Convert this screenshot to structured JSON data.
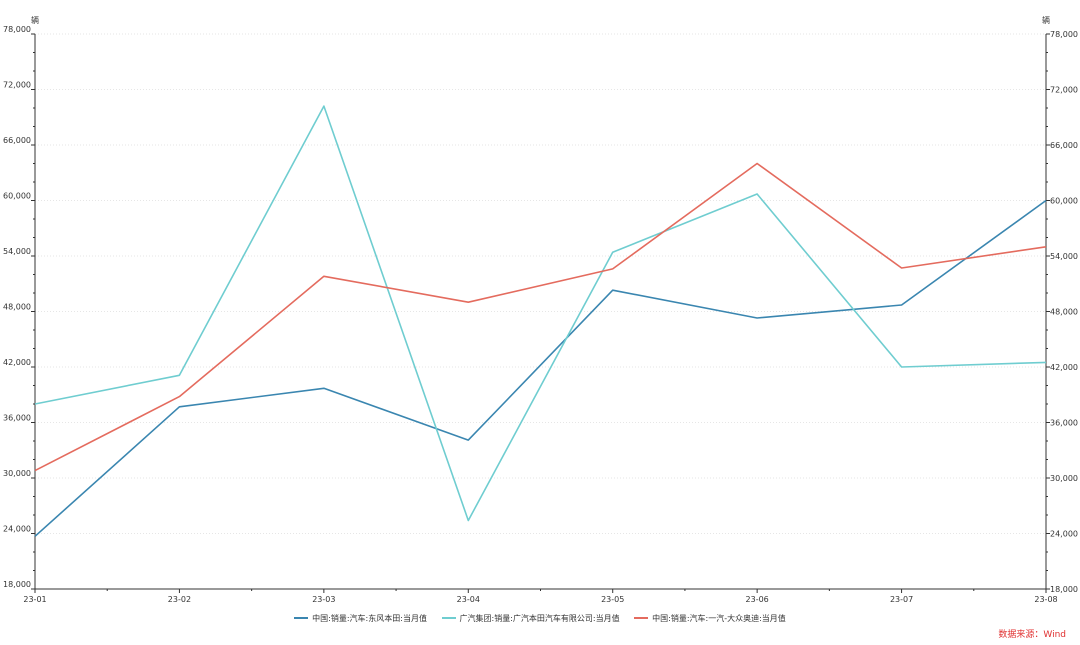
{
  "chart_data": {
    "type": "line",
    "x": [
      "23-01",
      "23-02",
      "23-03",
      "23-04",
      "23-05",
      "23-06",
      "23-07",
      "23-08"
    ],
    "y_unit_left": "辆",
    "y_unit_right": "辆",
    "ylim": [
      18000,
      78000
    ],
    "yticks": [
      18000,
      24000,
      30000,
      36000,
      42000,
      48000,
      54000,
      60000,
      66000,
      72000,
      78000
    ],
    "ytick_labels": [
      "18,000",
      "24,000",
      "30,000",
      "36,000",
      "42,000",
      "48,000",
      "54,000",
      "60,000",
      "66,000",
      "72,000",
      "78,000"
    ],
    "grid": true,
    "legend_placement": "bottom",
    "series": [
      {
        "name": "中国:销量:汽车:东风本田:当月值",
        "color": "#3a86b0",
        "values": [
          23700,
          37700,
          39700,
          34100,
          50300,
          47300,
          48700,
          60000
        ]
      },
      {
        "name": "广汽集团:销量:广汽本田汽车有限公司:当月值",
        "color": "#6fcdd0",
        "values": [
          38000,
          41100,
          70200,
          25400,
          54400,
          60700,
          42000,
          42500
        ]
      },
      {
        "name": "中国:销量:汽车:一汽-大众奥迪:当月值",
        "color": "#e46b5e",
        "values": [
          30800,
          38800,
          51800,
          49000,
          52600,
          64000,
          52700,
          55000
        ]
      }
    ]
  },
  "source_label": "数据来源：Wind"
}
